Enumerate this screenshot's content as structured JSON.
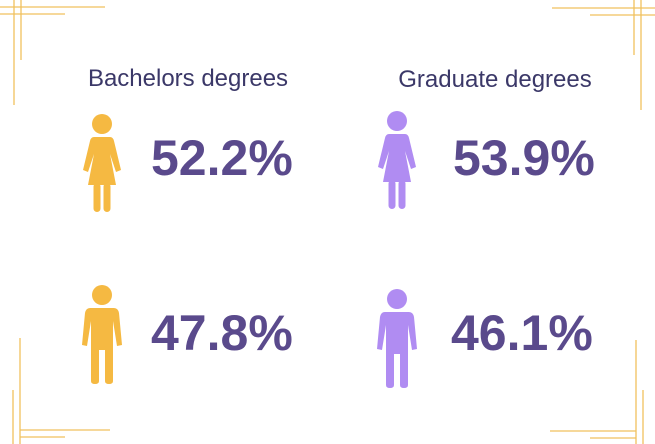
{
  "groups": [
    {
      "title": "Bachelors degrees",
      "women": "52.2%",
      "men": "47.8%"
    },
    {
      "title": "Graduate degrees",
      "women": "53.9%",
      "men": "46.1%"
    }
  ]
}
